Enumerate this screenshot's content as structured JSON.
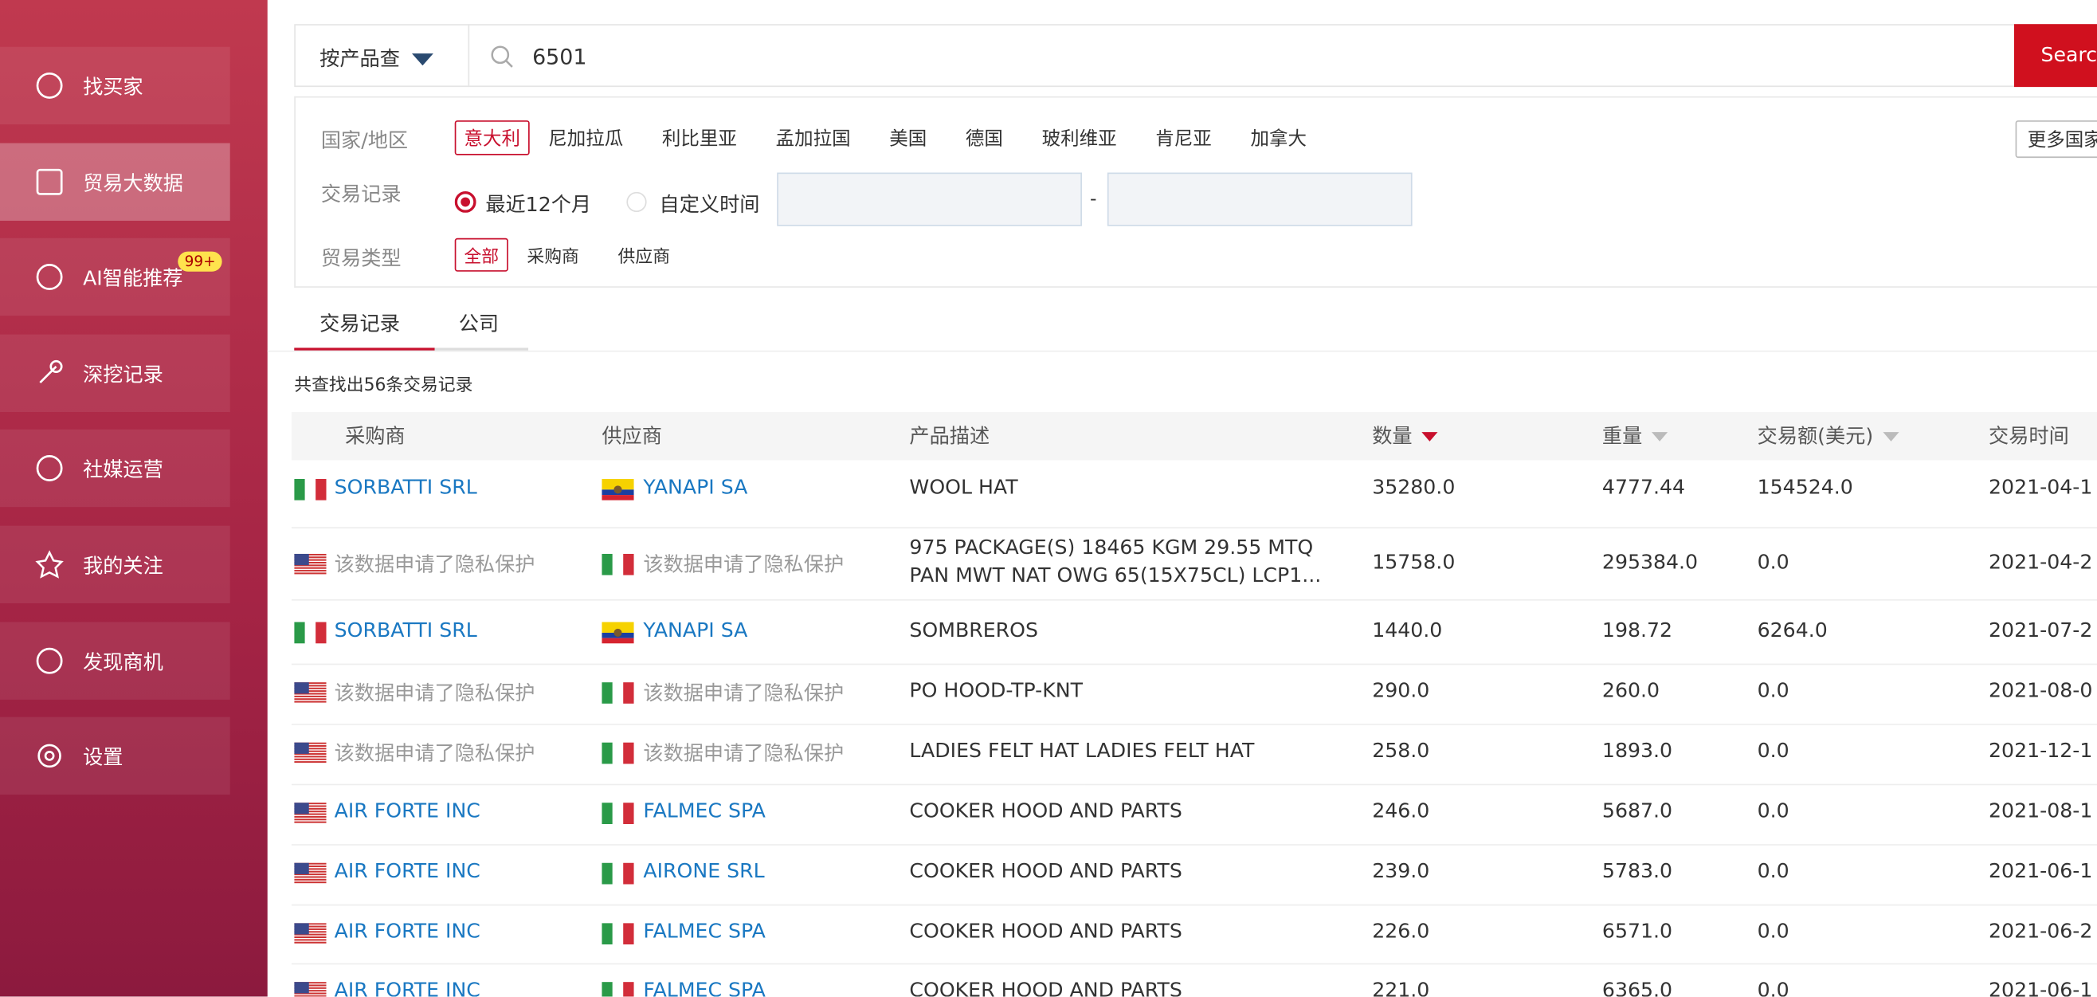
{
  "sidebar": {
    "items": [
      "找买家",
      "贸易大数据",
      "AI智能推荐",
      "深挖记录",
      "社媒运营",
      "我的关注",
      "发现商机",
      "设置"
    ],
    "badge": "99+"
  },
  "search": {
    "mode": "按产品查",
    "query": "6501",
    "button": "Searc"
  },
  "filters": {
    "country_label": "国家/地区",
    "countries": [
      "意大利",
      "尼加拉瓜",
      "利比里亚",
      "孟加拉国",
      "美国",
      "德国",
      "玻利维亚",
      "肯尼亚",
      "加拿大"
    ],
    "more": "更多国家",
    "record_label": "交易记录",
    "record_options": [
      "最近12个月",
      "自定义时间"
    ],
    "date_separator": "-",
    "type_label": "贸易类型",
    "types": [
      "全部",
      "采购商",
      "供应商"
    ]
  },
  "tabs": [
    "交易记录",
    "公司"
  ],
  "summary": "共查找出56条交易记录",
  "table": {
    "headers": [
      "采购商",
      "供应商",
      "产品描述",
      "数量",
      "重量",
      "交易额(美元)",
      "交易时间"
    ],
    "rows": [
      [
        "SORBATTI SRL",
        "YANAPI SA",
        "WOOL HAT",
        "35280.0",
        "4777.44",
        "154524.0",
        "2021-04-1"
      ],
      [
        "该数据申请了隐私保护",
        "该数据申请了隐私保护",
        "975 PACKAGE(S) 18465 KGM 29.55 MTQ PAN MWT NAT OWG 65(15X75CL) LCP1...",
        "15758.0",
        "295384.0",
        "0.0",
        "2021-04-2"
      ],
      [
        "SORBATTI SRL",
        "YANAPI SA",
        "SOMBREROS",
        "1440.0",
        "198.72",
        "6264.0",
        "2021-07-2"
      ],
      [
        "该数据申请了隐私保护",
        "该数据申请了隐私保护",
        "PO HOOD-TP-KNT",
        "290.0",
        "260.0",
        "0.0",
        "2021-08-0"
      ],
      [
        "该数据申请了隐私保护",
        "该数据申请了隐私保护",
        "LADIES FELT HAT LADIES FELT HAT",
        "258.0",
        "1893.0",
        "0.0",
        "2021-12-1"
      ],
      [
        "AIR FORTE INC",
        "FALMEC SPA",
        "COOKER HOOD AND PARTS",
        "246.0",
        "5687.0",
        "0.0",
        "2021-08-1"
      ],
      [
        "AIR FORTE INC",
        "AIRONE SRL",
        "COOKER HOOD AND PARTS",
        "239.0",
        "5783.0",
        "0.0",
        "2021-06-1"
      ],
      [
        "AIR FORTE INC",
        "FALMEC SPA",
        "COOKER HOOD AND PARTS",
        "226.0",
        "6571.0",
        "0.0",
        "2021-06-2"
      ],
      [
        "AIR FORTE INC",
        "FALMEC SPA",
        "COOKER HOOD AND PARTS",
        "221.0",
        "6365.0",
        "0.0",
        "2021-06-1"
      ]
    ]
  }
}
